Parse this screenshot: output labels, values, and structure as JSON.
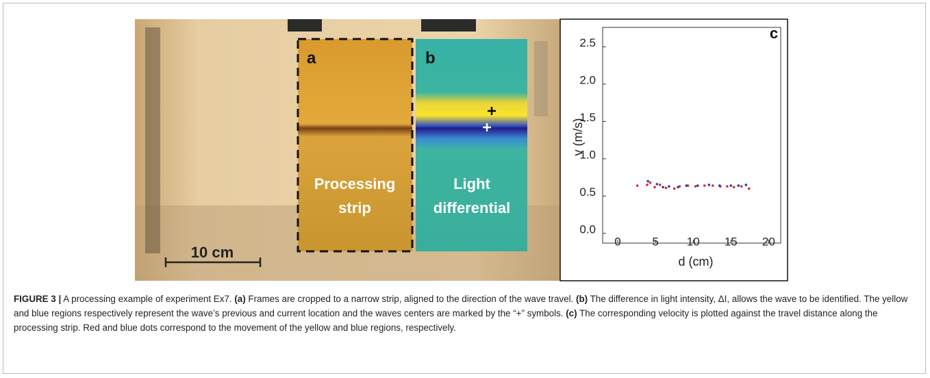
{
  "panels": {
    "a": {
      "letter": "a",
      "label_lines": [
        "Processing",
        "strip"
      ]
    },
    "b": {
      "letter": "b",
      "label_lines": [
        "Light",
        "differential"
      ]
    },
    "scale_bar": "10 cm"
  },
  "chart_data": {
    "type": "scatter",
    "panel_letter": "c",
    "xlabel": "d (cm)",
    "ylabel": "v (m/s)",
    "xlim": [
      -2,
      21.6
    ],
    "ylim": [
      -0.13,
      2.76
    ],
    "xticks": [
      0,
      5,
      10,
      15,
      20
    ],
    "yticks": [
      {
        "value": 0,
        "label": "0.0"
      },
      0.5,
      {
        "value": 1,
        "label": "1.0"
      },
      1.5,
      {
        "value": 2,
        "label": "2.0"
      },
      2.5
    ],
    "series": [
      {
        "color": "#e0282e",
        "x": [
          2.6,
          3.9,
          4.3,
          4.9,
          5.6,
          6.4,
          7.5,
          8.2,
          9.3,
          10.3,
          11.5,
          12.6,
          13.6,
          14.5,
          15.4,
          16.4,
          17.4
        ],
        "y": [
          0.64,
          0.65,
          0.68,
          0.62,
          0.65,
          0.61,
          0.6,
          0.63,
          0.64,
          0.63,
          0.64,
          0.64,
          0.63,
          0.63,
          0.62,
          0.63,
          0.6
        ]
      },
      {
        "color": "#2c3e9e",
        "x": [
          4,
          5.2,
          6,
          6.8,
          8,
          9.1,
          10.6,
          12.1,
          13.5,
          15,
          16,
          17
        ],
        "y": [
          0.7,
          0.66,
          0.62,
          0.63,
          0.62,
          0.64,
          0.64,
          0.65,
          0.64,
          0.64,
          0.64,
          0.65
        ]
      }
    ]
  },
  "caption": {
    "runs": [
      {
        "text": "FIGURE 3 |",
        "bold": true
      },
      {
        "text": " A processing example of experiment Ex7. ",
        "bold": false
      },
      {
        "text": "(a)",
        "bold": true
      },
      {
        "text": " Frames are cropped to a narrow strip, aligned to the direction of the wave travel. ",
        "bold": false
      },
      {
        "text": "(b)",
        "bold": true
      },
      {
        "text": " The difference in light intensity, ΔI, allows the wave to be identified. The yellow and blue regions respectively represent the wave’s previous and current location and the waves centers are marked by the “+” symbols. ",
        "bold": false
      },
      {
        "text": "(c)",
        "bold": true
      },
      {
        "text": " The corresponding velocity is plotted against the travel distance along the processing strip. Red and blue dots correspond to the movement of the yellow and blue regions, respectively.",
        "bold": false
      }
    ]
  }
}
